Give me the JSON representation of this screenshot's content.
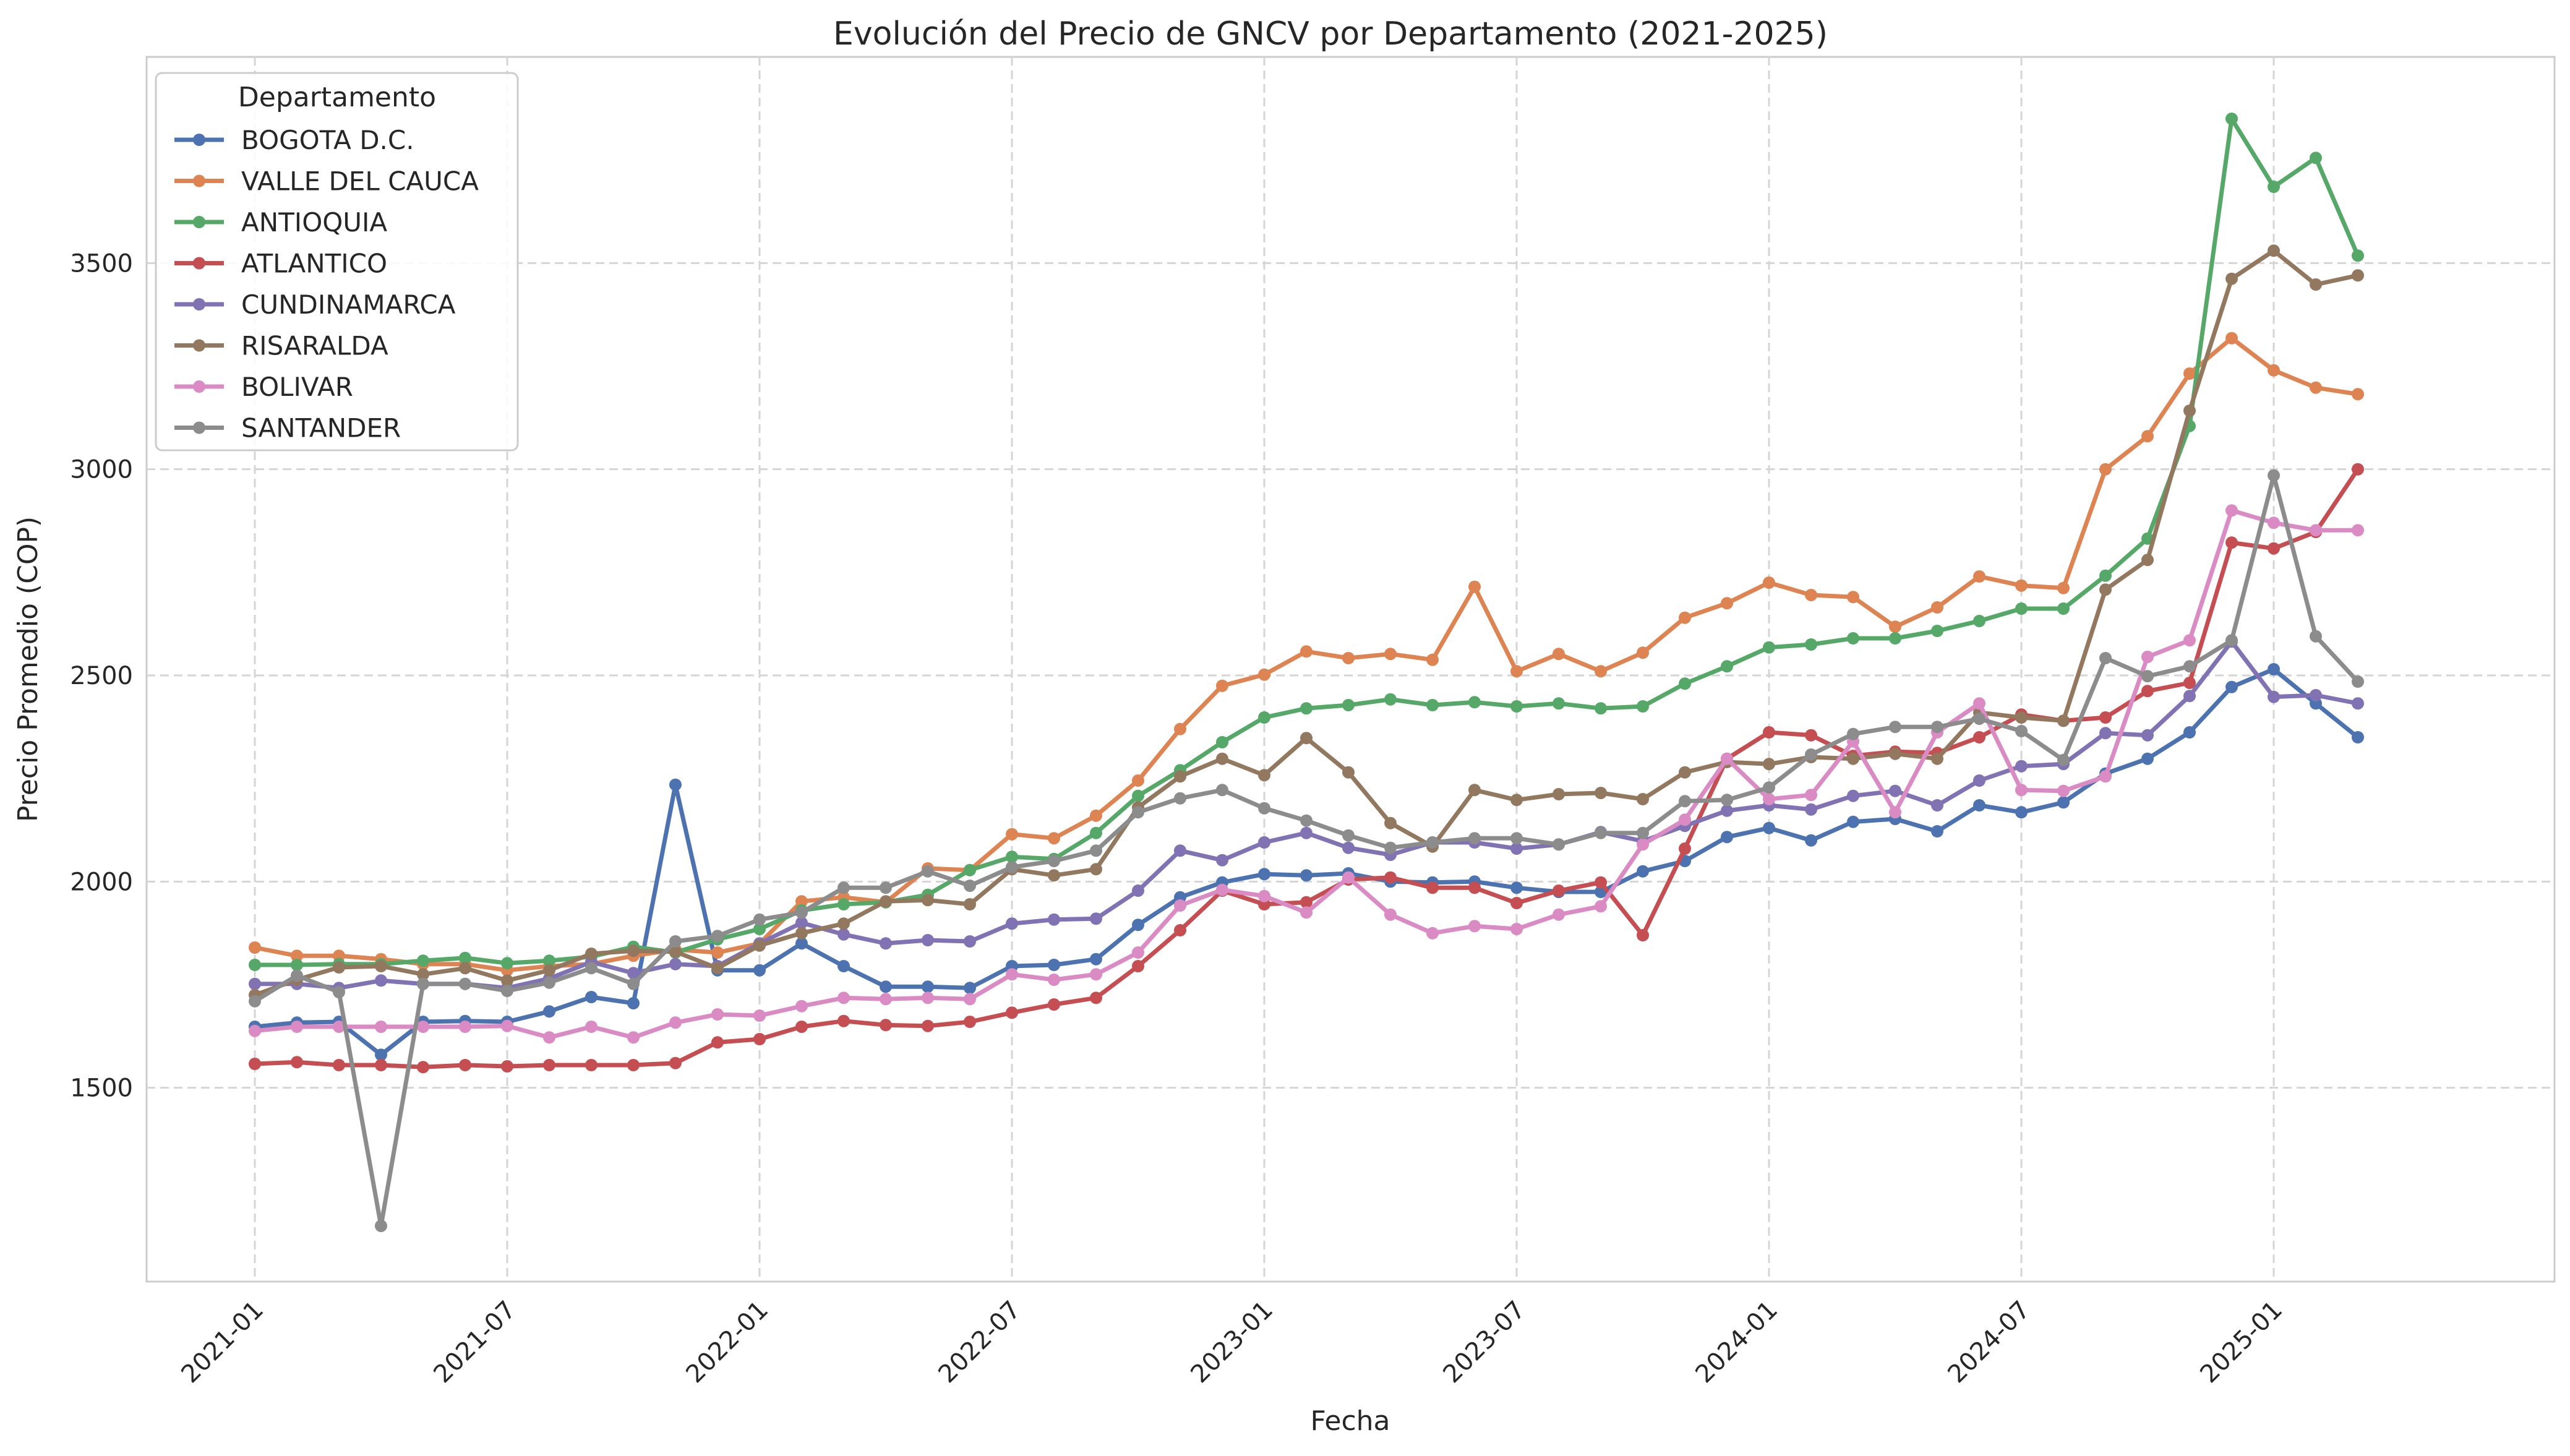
{
  "chart_data": {
    "type": "line",
    "title": "Evolución del Precio de GNCV por Departamento (2021-2025)",
    "xlabel": "Fecha",
    "ylabel": "Precio Promedio (COP)",
    "ylim": [
      1030,
      4000
    ],
    "y_ticks": [
      1500,
      2000,
      2500,
      3000,
      3500
    ],
    "x_tick_labels": [
      "2021-01",
      "2021-07",
      "2022-01",
      "2022-07",
      "2023-01",
      "2023-07",
      "2024-01",
      "2024-07",
      "2025-01"
    ],
    "x": [
      "2021-01",
      "2021-02",
      "2021-03",
      "2021-04",
      "2021-05",
      "2021-06",
      "2021-07",
      "2021-08",
      "2021-09",
      "2021-10",
      "2021-11",
      "2021-12",
      "2022-01",
      "2022-02",
      "2022-03",
      "2022-04",
      "2022-05",
      "2022-06",
      "2022-07",
      "2022-08",
      "2022-09",
      "2022-10",
      "2022-11",
      "2022-12",
      "2023-01",
      "2023-02",
      "2023-03",
      "2023-04",
      "2023-05",
      "2023-06",
      "2023-07",
      "2023-08",
      "2023-09",
      "2023-10",
      "2023-11",
      "2023-12",
      "2024-01",
      "2024-02",
      "2024-03",
      "2024-04",
      "2024-05",
      "2024-06",
      "2024-07",
      "2024-08",
      "2024-09",
      "2024-10",
      "2024-11",
      "2024-12",
      "2025-01",
      "2025-02",
      "2025-03"
    ],
    "grid": true,
    "legend": {
      "title": "Departamento",
      "placement": "top-left"
    },
    "series": [
      {
        "name": "BOGOTA D.C.",
        "color": "#4c72b0",
        "values": [
          1648,
          1658,
          1660,
          1580,
          1660,
          1662,
          1660,
          1685,
          1720,
          1705,
          2235,
          1785,
          1785,
          1850,
          1795,
          1745,
          1745,
          1742,
          1795,
          1798,
          1812,
          1895,
          1962,
          1998,
          2018,
          2015,
          2020,
          2000,
          1998,
          2000,
          1985,
          1975,
          1975,
          2025,
          2050,
          2108,
          2130,
          2100,
          2145,
          2152,
          2122,
          2185,
          2168,
          2192,
          2262,
          2298,
          2362,
          2472,
          2515,
          2432,
          2350
        ]
      },
      {
        "name": "VALLE DEL CAUCA",
        "color": "#dd8452",
        "values": [
          1840,
          1820,
          1820,
          1812,
          1800,
          1800,
          1785,
          1795,
          1800,
          1820,
          1835,
          1828,
          1850,
          1952,
          1962,
          1950,
          2032,
          2028,
          2115,
          2105,
          2160,
          2245,
          2370,
          2475,
          2502,
          2558,
          2542,
          2552,
          2538,
          2715,
          2510,
          2552,
          2510,
          2555,
          2640,
          2675,
          2725,
          2695,
          2690,
          2618,
          2665,
          2740,
          2718,
          2712,
          3000,
          3080,
          3232,
          3318,
          3240,
          3198,
          3182
        ]
      },
      {
        "name": "ANTIOQUIA",
        "color": "#55a868",
        "values": [
          1798,
          1798,
          1800,
          1800,
          1808,
          1815,
          1802,
          1808,
          1818,
          1842,
          1828,
          1860,
          1885,
          1930,
          1945,
          1950,
          1968,
          2028,
          2060,
          2055,
          2118,
          2208,
          2270,
          2338,
          2398,
          2420,
          2428,
          2442,
          2428,
          2435,
          2425,
          2432,
          2420,
          2425,
          2480,
          2522,
          2568,
          2575,
          2590,
          2590,
          2608,
          2632,
          2662,
          2662,
          2742,
          2832,
          3105,
          3850,
          3685,
          3755,
          3518
        ]
      },
      {
        "name": "ATLANTICO",
        "color": "#c44e52",
        "values": [
          1558,
          1562,
          1555,
          1555,
          1550,
          1555,
          1552,
          1555,
          1555,
          1555,
          1560,
          1610,
          1618,
          1648,
          1662,
          1652,
          1650,
          1660,
          1682,
          1702,
          1718,
          1795,
          1882,
          1978,
          1945,
          1950,
          2005,
          2010,
          1985,
          1985,
          1948,
          1978,
          1998,
          1870,
          2080,
          2298,
          2362,
          2355,
          2305,
          2315,
          2312,
          2350,
          2405,
          2390,
          2398,
          2462,
          2482,
          2822,
          2808,
          2848,
          3000
        ]
      },
      {
        "name": "CUNDINAMARCA",
        "color": "#8172b3",
        "values": [
          1752,
          1752,
          1742,
          1760,
          1752,
          1752,
          1742,
          1765,
          1805,
          1778,
          1800,
          1795,
          1850,
          1900,
          1872,
          1850,
          1858,
          1855,
          1898,
          1908,
          1910,
          1978,
          2075,
          2052,
          2095,
          2118,
          2082,
          2065,
          2095,
          2095,
          2080,
          2090,
          2120,
          2098,
          2135,
          2172,
          2185,
          2175,
          2208,
          2220,
          2185,
          2245,
          2280,
          2285,
          2360,
          2355,
          2450,
          2582,
          2448,
          2452,
          2432
        ]
      },
      {
        "name": "RISARALDA",
        "color": "#937860",
        "values": [
          1725,
          1762,
          1792,
          1795,
          1775,
          1790,
          1760,
          1785,
          1825,
          1832,
          1830,
          1790,
          1845,
          1875,
          1898,
          1952,
          1955,
          1945,
          2030,
          2015,
          2030,
          2180,
          2255,
          2298,
          2258,
          2348,
          2265,
          2142,
          2085,
          2222,
          2198,
          2212,
          2215,
          2200,
          2265,
          2290,
          2285,
          2302,
          2298,
          2310,
          2298,
          2410,
          2398,
          2390,
          2708,
          2780,
          3142,
          3462,
          3530,
          3448,
          3470
        ]
      },
      {
        "name": "BOLIVAR",
        "color": "#da8bc3",
        "values": [
          1638,
          1648,
          1648,
          1648,
          1648,
          1648,
          1650,
          1622,
          1648,
          1622,
          1658,
          1678,
          1675,
          1698,
          1718,
          1715,
          1718,
          1715,
          1775,
          1762,
          1775,
          1828,
          1942,
          1980,
          1965,
          1925,
          2010,
          1920,
          1875,
          1892,
          1885,
          1920,
          1940,
          2090,
          2150,
          2298,
          2200,
          2210,
          2340,
          2168,
          2362,
          2432,
          2222,
          2220,
          2255,
          2545,
          2585,
          2900,
          2870,
          2852,
          2852
        ]
      },
      {
        "name": "SANTANDER",
        "color": "#8c8c8c",
        "values": [
          1710,
          1772,
          1732,
          1165,
          1752,
          1752,
          1735,
          1755,
          1790,
          1752,
          1855,
          1868,
          1908,
          1925,
          1985,
          1985,
          2025,
          1990,
          2035,
          2050,
          2075,
          2168,
          2202,
          2222,
          2178,
          2148,
          2112,
          2082,
          2095,
          2105,
          2105,
          2090,
          2118,
          2118,
          2195,
          2198,
          2228,
          2308,
          2358,
          2375,
          2375,
          2395,
          2365,
          2295,
          2542,
          2498,
          2522,
          2585,
          2985,
          2595,
          2485
        ]
      }
    ]
  }
}
